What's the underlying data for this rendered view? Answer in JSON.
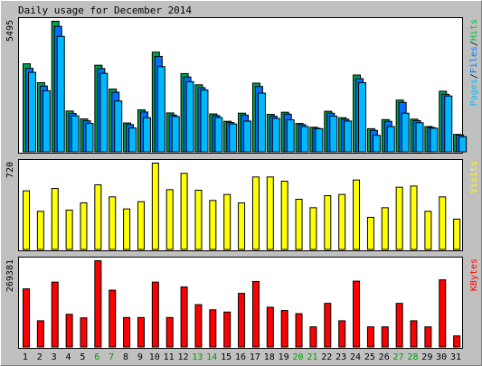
{
  "chart_data": {
    "type": "bar",
    "title": "Daily usage for December 2014",
    "categories": [
      "1",
      "2",
      "3",
      "4",
      "5",
      "6",
      "7",
      "8",
      "9",
      "10",
      "11",
      "12",
      "13",
      "14",
      "15",
      "16",
      "17",
      "18",
      "19",
      "20",
      "21",
      "22",
      "23",
      "24",
      "25",
      "26",
      "27",
      "28",
      "29",
      "30",
      "31"
    ],
    "weekend_days": [
      "6",
      "7",
      "13",
      "14",
      "20",
      "21",
      "27",
      "28"
    ],
    "panels": [
      {
        "id": "pages-files-hits",
        "y_max_label": "5495",
        "y_max": 5495,
        "legend_parts": [
          {
            "text": "Pages",
            "color": "#00c0ff"
          },
          {
            "text": "/",
            "color": "#000000"
          },
          {
            "text": "Files",
            "color": "#0080ff"
          },
          {
            "text": "/",
            "color": "#000000"
          },
          {
            "text": "Hits",
            "color": "#00c040"
          }
        ],
        "series": [
          {
            "name": "Hits",
            "color": "#00a050",
            "values": [
              3710,
              2920,
              5495,
              1730,
              1400,
              3650,
              2650,
              1230,
              1780,
              4200,
              1650,
              3300,
              2830,
              1610,
              1300,
              1640,
              2900,
              1590,
              1680,
              1210,
              1050,
              1720,
              1450,
              3240,
              990,
              1370,
              2190,
              1390,
              1080,
              2560,
              750
            ]
          },
          {
            "name": "Files",
            "color": "#0070ff",
            "values": [
              3520,
              2780,
              5280,
              1630,
              1320,
              3510,
              2520,
              1160,
              1690,
              4020,
              1560,
              3160,
              2710,
              1540,
              1250,
              1560,
              2760,
              1510,
              1600,
              1160,
              1010,
              1640,
              1390,
              3090,
              920,
              1300,
              2090,
              1330,
              1040,
              2430,
              720
            ]
          },
          {
            "name": "Pages",
            "color": "#00b8ff",
            "values": [
              3350,
              2580,
              4860,
              1530,
              1210,
              3310,
              2150,
              1020,
              1450,
              3590,
              1500,
              2960,
              2610,
              1460,
              1190,
              1310,
              2480,
              1420,
              1360,
              1080,
              990,
              1520,
              1310,
              2920,
              710,
              1080,
              1640,
              1240,
              1010,
              2360,
              650
            ]
          }
        ]
      },
      {
        "id": "visits",
        "y_max_label": "720",
        "y_max": 720,
        "legend_parts": [
          {
            "text": "Visits",
            "color": "#ffff00"
          }
        ],
        "series": [
          {
            "name": "Visits",
            "color": "#ffff00",
            "values": [
              490,
              320,
              510,
              330,
              390,
              540,
              440,
              340,
              400,
              720,
              500,
              635,
              495,
              410,
              460,
              390,
              605,
              605,
              570,
              420,
              350,
              450,
              460,
              580,
              270,
              350,
              520,
              530,
              320,
              440,
              255
            ]
          }
        ]
      },
      {
        "id": "kbytes",
        "y_max_label": "269381",
        "y_max": 269381,
        "legend_parts": [
          {
            "text": "KBytes",
            "color": "#ff0000"
          }
        ],
        "series": [
          {
            "name": "KBytes",
            "color": "#ff0000",
            "values": [
              182000,
              83000,
              203000,
              103000,
              92000,
              269381,
              178000,
              93000,
              93000,
              203000,
              93000,
              188000,
              133000,
              117000,
              110000,
              168000,
              205000,
              125000,
              115000,
              105000,
              64000,
              137000,
              83000,
              206000,
              64000,
              64000,
              137000,
              83000,
              64000,
              210000,
              36000
            ]
          }
        ]
      }
    ]
  },
  "colors": {
    "background": "#c0c0c0",
    "plot_background": "#ffffff",
    "weekday_label": "#000000",
    "weekend_label": "#00a000"
  }
}
